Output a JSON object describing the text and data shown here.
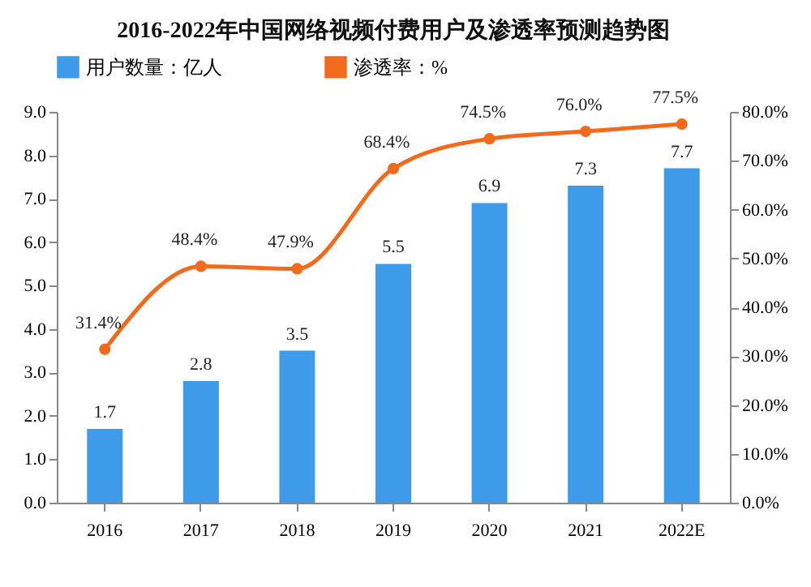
{
  "chart_data": {
    "type": "bar",
    "title": "2016-2022年中国网络视频付费用户及渗透率预测趋势图",
    "categories": [
      "2016",
      "2017",
      "2018",
      "2019",
      "2020",
      "2021",
      "2022E"
    ],
    "series": [
      {
        "name": "用户数量：亿人",
        "type": "bar",
        "color": "#3d9be9",
        "values": [
          1.7,
          2.8,
          3.5,
          5.5,
          6.9,
          7.3,
          7.7
        ],
        "value_labels": [
          "1.7",
          "2.8",
          "3.5",
          "5.5",
          "6.9",
          "7.3",
          "7.7"
        ]
      },
      {
        "name": "渗透率：%",
        "type": "line",
        "axis": "y2",
        "color": "#f26b1d",
        "marker": "circle",
        "values": [
          31.4,
          48.4,
          47.9,
          68.4,
          74.5,
          76.0,
          77.5
        ],
        "value_labels": [
          "31.4%",
          "48.4%",
          "47.9%",
          "68.4%",
          "74.5%",
          "76.0%",
          "77.5%"
        ]
      }
    ],
    "ylim": [
      0,
      9
    ],
    "yticks": [
      {
        "value": 0,
        "label": "0.0"
      },
      {
        "value": 1,
        "label": "1.0"
      },
      {
        "value": 2,
        "label": "2.0"
      },
      {
        "value": 3,
        "label": "3.0"
      },
      {
        "value": 4,
        "label": "4.0"
      },
      {
        "value": 5,
        "label": "5.0"
      },
      {
        "value": 6,
        "label": "6.0"
      },
      {
        "value": 7,
        "label": "7.0"
      },
      {
        "value": 8,
        "label": "8.0"
      },
      {
        "value": 9,
        "label": "9.0"
      }
    ],
    "y2lim": [
      0,
      80
    ],
    "y2ticks": [
      {
        "value": 0,
        "label": "0.0%"
      },
      {
        "value": 10,
        "label": "10.0%"
      },
      {
        "value": 20,
        "label": "20.0%"
      },
      {
        "value": 30,
        "label": "30.0%"
      },
      {
        "value": 40,
        "label": "40.0%"
      },
      {
        "value": 50,
        "label": "50.0%"
      },
      {
        "value": 60,
        "label": "60.0%"
      },
      {
        "value": 70,
        "label": "70.0%"
      },
      {
        "value": 80,
        "label": "80.0%"
      }
    ],
    "legend": "top",
    "grid": false
  }
}
